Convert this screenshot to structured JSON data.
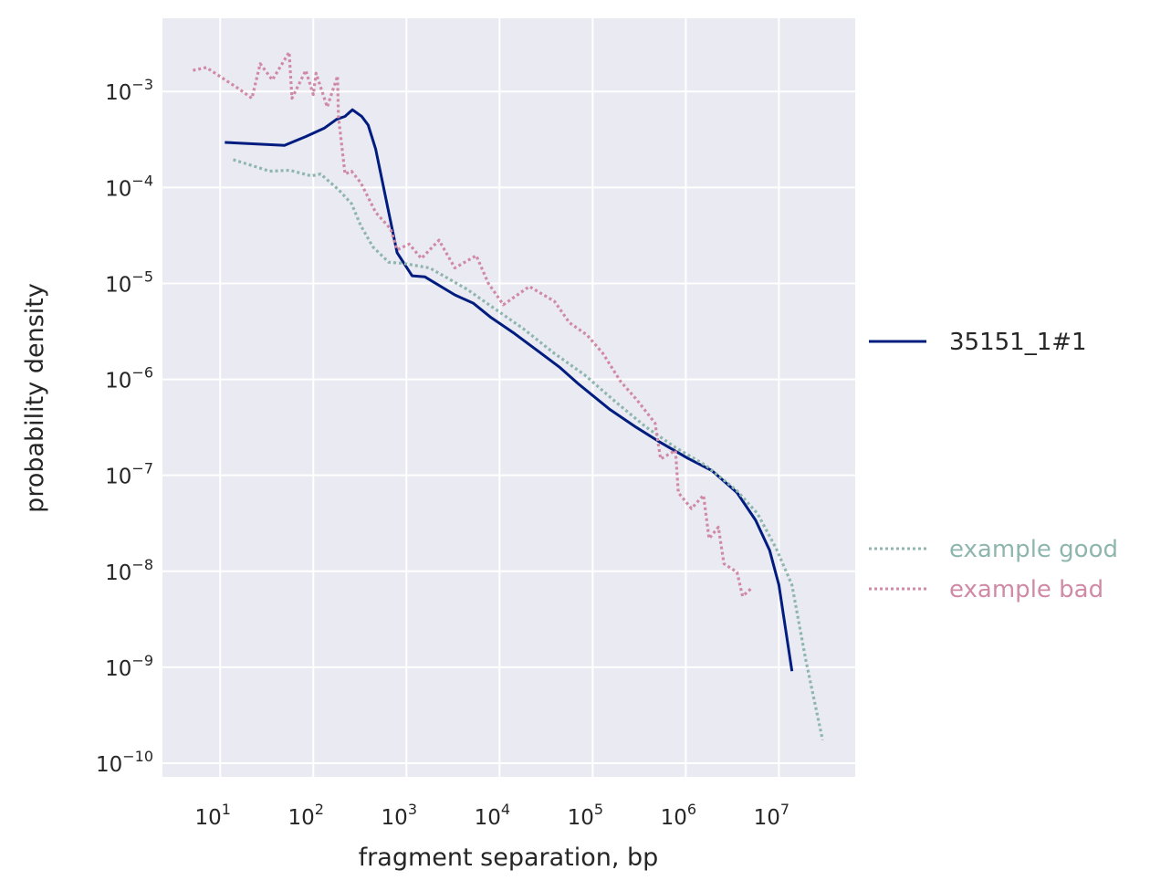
{
  "chart_data": {
    "type": "line",
    "xlabel": "fragment separation, bp",
    "ylabel": "probability density",
    "xscale": "log",
    "yscale": "log",
    "xlim": [
      2.4,
      66000000.0
    ],
    "ylim": [
      7.2e-11,
      0.0058
    ],
    "grid": true,
    "background": "#eaeaf2",
    "legend_placement": "right, outside",
    "x_ticks": [
      {
        "base": "10",
        "exp": "1",
        "value": 10.0
      },
      {
        "base": "10",
        "exp": "2",
        "value": 100.0
      },
      {
        "base": "10",
        "exp": "3",
        "value": 1000.0
      },
      {
        "base": "10",
        "exp": "4",
        "value": 10000.0
      },
      {
        "base": "10",
        "exp": "5",
        "value": 100000.0
      },
      {
        "base": "10",
        "exp": "6",
        "value": 1000000.0
      },
      {
        "base": "10",
        "exp": "7",
        "value": 10000000.0
      }
    ],
    "y_ticks": [
      {
        "base": "10",
        "exp": "−3",
        "value": 0.001
      },
      {
        "base": "10",
        "exp": "−4",
        "value": 0.0001
      },
      {
        "base": "10",
        "exp": "−5",
        "value": 1e-05
      },
      {
        "base": "10",
        "exp": "−6",
        "value": 1e-06
      },
      {
        "base": "10",
        "exp": "−7",
        "value": 1e-07
      },
      {
        "base": "10",
        "exp": "−8",
        "value": 1e-08
      },
      {
        "base": "10",
        "exp": "−9",
        "value": 1e-09
      },
      {
        "base": "10",
        "exp": "−10",
        "value": 1e-10
      }
    ],
    "series": [
      {
        "name": "35151_1#1",
        "color": "#001c7f",
        "style": "solid",
        "x": [
          11.2,
          49,
          83,
          132,
          178,
          219,
          263,
          331,
          389,
          468,
          646,
          794,
          1150,
          1580,
          3310,
          5250,
          8130,
          14500,
          26300,
          43700,
          69200,
          151000,
          295000,
          501000,
          1050000.0,
          1910000.0,
          3550000.0,
          5620000.0,
          7940000.0,
          10000000.0,
          13800000.0
        ],
        "y": [
          0.000295,
          0.000275,
          0.000339,
          0.000417,
          0.000513,
          0.00055,
          0.000646,
          0.00055,
          0.000447,
          0.000251,
          5.5e-05,
          2.09e-05,
          1.2e-05,
          1.17e-05,
          7.6e-06,
          6.2e-06,
          4.4e-06,
          3e-06,
          1.95e-06,
          1.35e-06,
          9.1e-07,
          4.9e-07,
          3.16e-07,
          2.29e-07,
          1.51e-07,
          1.12e-07,
          6.6e-08,
          3.4e-08,
          1.66e-08,
          7.2e-09,
          9.1e-10
        ]
      },
      {
        "name": "example good",
        "color": "#8fb6ae",
        "style": "dotted",
        "x": [
          13.8,
          34,
          56,
          95,
          120,
          186,
          257,
          324,
          437,
          646,
          912,
          1780,
          4470,
          8510,
          17800,
          38900,
          81300,
          174000,
          372000,
          776000,
          1660000.0,
          3550000.0,
          5890000.0,
          9330000.0,
          13800000.0,
          19500000.0,
          29500000.0
        ],
        "y": [
          0.000195,
          0.000148,
          0.000151,
          0.000132,
          0.000138,
          9.5e-05,
          6.8e-05,
          4e-05,
          2.4e-05,
          1.66e-05,
          1.62e-05,
          1.45e-05,
          8.7e-06,
          5.6e-06,
          3.4e-06,
          1.86e-06,
          1.12e-06,
          5.9e-07,
          3.2e-07,
          1.95e-07,
          1.26e-07,
          6.9e-08,
          4e-08,
          1.74e-08,
          7.2e-09,
          1.17e-09,
          1.74e-10
        ]
      },
      {
        "name": "example bad",
        "color": "#d08aa5",
        "style": "dotted",
        "x": [
          5.1,
          7.1,
          15.8,
          21.9,
          26.9,
          36.3,
          55,
          59,
          83,
          100,
          107,
          141,
          182,
          186,
          219,
          257,
          324,
          468,
          676,
          794,
          1070,
          1450,
          2240,
          3310,
          5620,
          7590,
          11000,
          20900,
          38900,
          56200,
          87100,
          129000,
          200000,
          295000,
          468000,
          537000,
          776000,
          832000,
          1150000.0,
          1550000.0,
          1780000.0,
          2240000.0,
          2570000.0,
          3550000.0,
          4070000.0,
          5010000.0
        ],
        "y": [
          0.00166,
          0.00178,
          0.00107,
          0.00085,
          0.00195,
          0.00132,
          0.00257,
          0.00085,
          0.00166,
          0.00093,
          0.00155,
          0.00069,
          0.00145,
          0.00055,
          0.000138,
          0.000148,
          0.000112,
          5.5e-05,
          3.7e-05,
          2.24e-05,
          2.57e-05,
          1.82e-05,
          2.82e-05,
          1.45e-05,
          1.95e-05,
          1e-05,
          6e-06,
          9.3e-06,
          6.5e-06,
          3.9e-06,
          2.9e-06,
          1.86e-06,
          9.5e-07,
          6.2e-07,
          3.5e-07,
          1.48e-07,
          1.82e-07,
          6.6e-08,
          4.5e-08,
          6.2e-08,
          2.19e-08,
          2.88e-08,
          1.2e-08,
          9.8e-09,
          5.5e-09,
          6.6e-09
        ]
      }
    ]
  }
}
